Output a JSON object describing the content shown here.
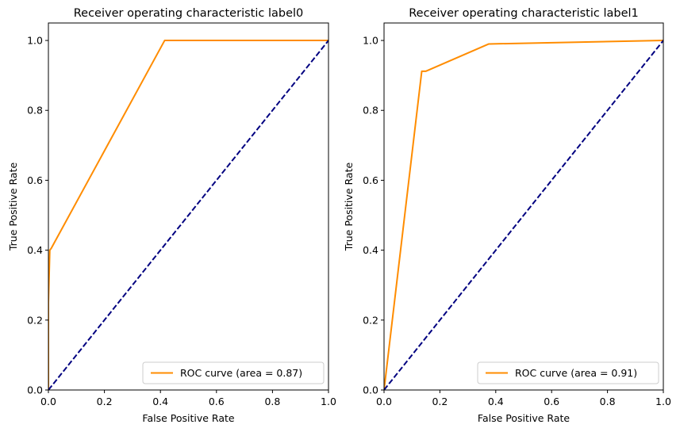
{
  "chart_data": [
    {
      "type": "line",
      "title": "Receiver operating characteristic label0",
      "xlabel": "False Positive Rate",
      "ylabel": "True Positive Rate",
      "xlim": [
        0.0,
        1.0
      ],
      "ylim": [
        0.0,
        1.05
      ],
      "xticks": [
        "0.0",
        "0.2",
        "0.4",
        "0.6",
        "0.8",
        "1.0"
      ],
      "yticks": [
        "0.0",
        "0.2",
        "0.4",
        "0.6",
        "0.8",
        "1.0"
      ],
      "legend_position": "lower right",
      "grid": false,
      "series": [
        {
          "name": "ROC curve (area = 0.87)",
          "color": "#ff8c00",
          "style": "solid",
          "x": [
            0.0,
            0.0,
            0.005,
            0.01,
            0.415,
            1.0
          ],
          "y": [
            0.0,
            0.25,
            0.4,
            0.405,
            1.0,
            1.0
          ]
        },
        {
          "color": "#000080",
          "style": "dashed",
          "x": [
            0.0,
            1.0
          ],
          "y": [
            0.0,
            1.0
          ]
        }
      ]
    },
    {
      "type": "line",
      "title": "Receiver operating characteristic label1",
      "xlabel": "False Positive Rate",
      "ylabel": "True Positive Rate",
      "xlim": [
        0.0,
        1.0
      ],
      "ylim": [
        0.0,
        1.05
      ],
      "xticks": [
        "0.0",
        "0.2",
        "0.4",
        "0.6",
        "0.8",
        "1.0"
      ],
      "yticks": [
        "0.0",
        "0.2",
        "0.4",
        "0.6",
        "0.8",
        "1.0"
      ],
      "legend_position": "lower right",
      "grid": false,
      "series": [
        {
          "name": "ROC curve (area = 0.91)",
          "color": "#ff8c00",
          "style": "solid",
          "x": [
            0.0,
            0.135,
            0.15,
            0.375,
            1.0
          ],
          "y": [
            0.0,
            0.912,
            0.912,
            0.99,
            1.0
          ]
        },
        {
          "color": "#000080",
          "style": "dashed",
          "x": [
            0.0,
            1.0
          ],
          "y": [
            0.0,
            1.0
          ]
        }
      ]
    }
  ]
}
